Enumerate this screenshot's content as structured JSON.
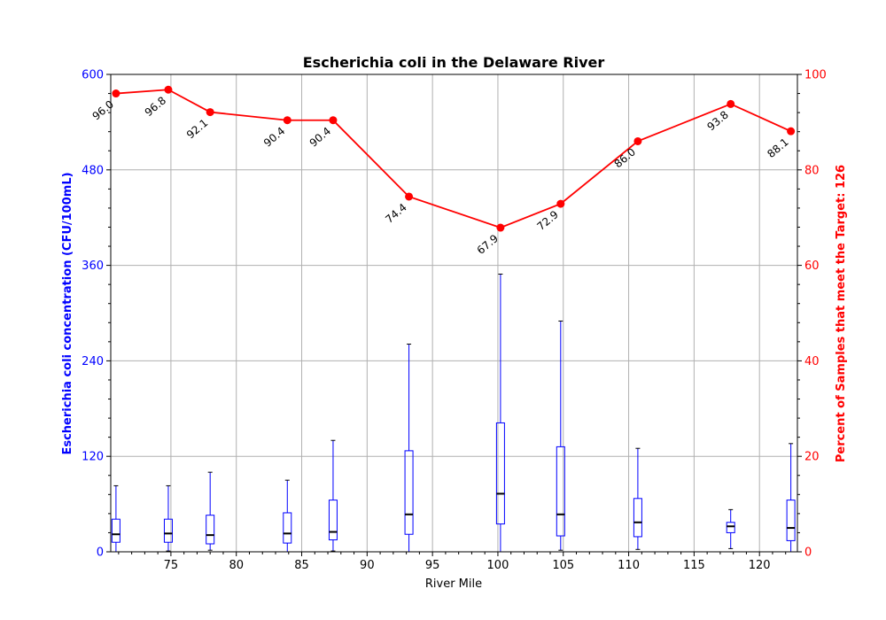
{
  "chart_data": {
    "type": "box+line",
    "title": "Escherichia coli in the Delaware River",
    "xlabel": "River Mile",
    "ylabel_left": "Escherichia coli concentration (CFU/100mL)",
    "ylabel_right": "Percent of Samples that meet the Target: 126",
    "xlim": [
      70.4,
      122.9
    ],
    "ylim_left": [
      0,
      600
    ],
    "ylim_right": [
      0,
      100
    ],
    "x_ticks": [
      75,
      80,
      85,
      90,
      95,
      100,
      105,
      110,
      115,
      120
    ],
    "y_left_ticks": [
      0,
      120,
      240,
      360,
      480,
      600
    ],
    "y_right_ticks": [
      0,
      20,
      40,
      60,
      80,
      100
    ],
    "grid": true,
    "colors": {
      "box": "#0000ff",
      "median": "#000000",
      "line": "#ff0000",
      "left_axis": "#0000ff",
      "right_axis": "#ff0000"
    },
    "boxes": [
      {
        "x": 70.8,
        "whisker_low": 0,
        "q1": 12,
        "median": 22,
        "q3": 41,
        "whisker_high": 83
      },
      {
        "x": 74.8,
        "whisker_low": 1,
        "q1": 12,
        "median": 23,
        "q3": 41,
        "whisker_high": 83
      },
      {
        "x": 78.0,
        "whisker_low": 2,
        "q1": 10,
        "median": 21,
        "q3": 46,
        "whisker_high": 100
      },
      {
        "x": 83.9,
        "whisker_low": 0,
        "q1": 11,
        "median": 23,
        "q3": 49,
        "whisker_high": 90
      },
      {
        "x": 87.4,
        "whisker_low": 1,
        "q1": 15,
        "median": 25,
        "q3": 65,
        "whisker_high": 140
      },
      {
        "x": 93.2,
        "whisker_low": 0,
        "q1": 22,
        "median": 47,
        "q3": 127,
        "whisker_high": 261
      },
      {
        "x": 100.2,
        "whisker_low": 0,
        "q1": 35,
        "median": 73,
        "q3": 162,
        "whisker_high": 349
      },
      {
        "x": 104.8,
        "whisker_low": 2,
        "q1": 20,
        "median": 47,
        "q3": 132,
        "whisker_high": 290
      },
      {
        "x": 110.7,
        "whisker_low": 3,
        "q1": 19,
        "median": 37,
        "q3": 67,
        "whisker_high": 130
      },
      {
        "x": 117.8,
        "whisker_low": 4,
        "q1": 24,
        "median": 32,
        "q3": 37,
        "whisker_high": 53
      },
      {
        "x": 122.4,
        "whisker_low": 0,
        "q1": 14,
        "median": 30,
        "q3": 65,
        "whisker_high": 136
      }
    ],
    "percent_series": {
      "x": [
        70.8,
        74.8,
        78.0,
        83.9,
        87.4,
        93.2,
        100.2,
        104.8,
        110.7,
        117.8,
        122.4
      ],
      "values": [
        96.0,
        96.8,
        92.1,
        90.4,
        90.4,
        74.4,
        67.9,
        72.9,
        86.0,
        93.8,
        88.1
      ],
      "labels": [
        "96.0",
        "96.8",
        "92.1",
        "90.4",
        "90.4",
        "74.4",
        "67.9",
        "72.9",
        "86.0",
        "93.8",
        "88.1"
      ]
    }
  }
}
